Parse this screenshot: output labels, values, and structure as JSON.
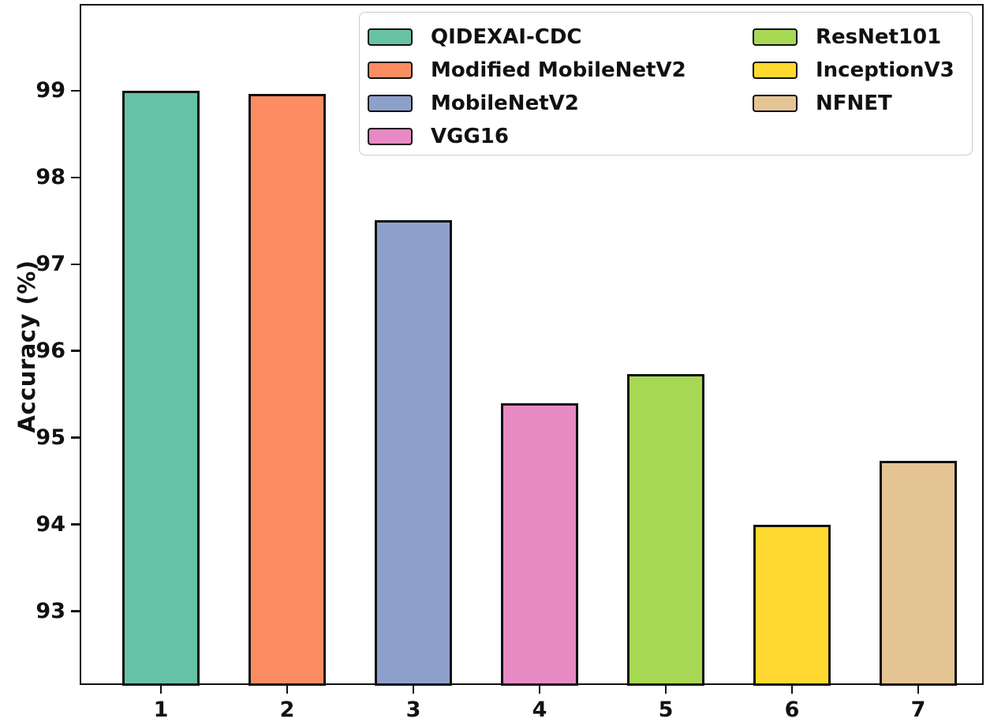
{
  "chart_data": {
    "type": "bar",
    "title": "",
    "xlabel": "",
    "ylabel": "Accuracy (%)",
    "categories": [
      "1",
      "2",
      "3",
      "4",
      "5",
      "6",
      "7"
    ],
    "bars": [
      {
        "x": "1",
        "label": "QIDEXAI-CDC",
        "value": 99.0,
        "color": "#66c2a5"
      },
      {
        "x": "2",
        "label": "Modified MobileNetV2",
        "value": 98.96,
        "color": "#fc8d62"
      },
      {
        "x": "3",
        "label": "MobileNetV2",
        "value": 97.51,
        "color": "#8da0cb"
      },
      {
        "x": "4",
        "label": "VGG16",
        "value": 95.4,
        "color": "#e78ac3"
      },
      {
        "x": "5",
        "label": "ResNet101",
        "value": 95.73,
        "color": "#a6d854"
      },
      {
        "x": "6",
        "label": "InceptionV3",
        "value": 94.0,
        "color": "#ffd92f"
      },
      {
        "x": "7",
        "label": "NFNET",
        "value": 94.73,
        "color": "#e5c494"
      }
    ],
    "values": [
      99.0,
      98.96,
      97.51,
      95.4,
      95.73,
      94.0,
      94.73
    ],
    "yticks": [
      93,
      94,
      95,
      96,
      97,
      98,
      99
    ],
    "ylim": [
      92.15,
      100.0
    ],
    "grid": false,
    "bar_edge_color": "#111111",
    "legend": {
      "position": "upper-center-right",
      "columns": [
        4,
        3
      ],
      "entries": [
        "QIDEXAI-CDC",
        "Modified MobileNetV2",
        "MobileNetV2",
        "VGG16",
        "ResNet101",
        "InceptionV3",
        "NFNET"
      ]
    }
  }
}
